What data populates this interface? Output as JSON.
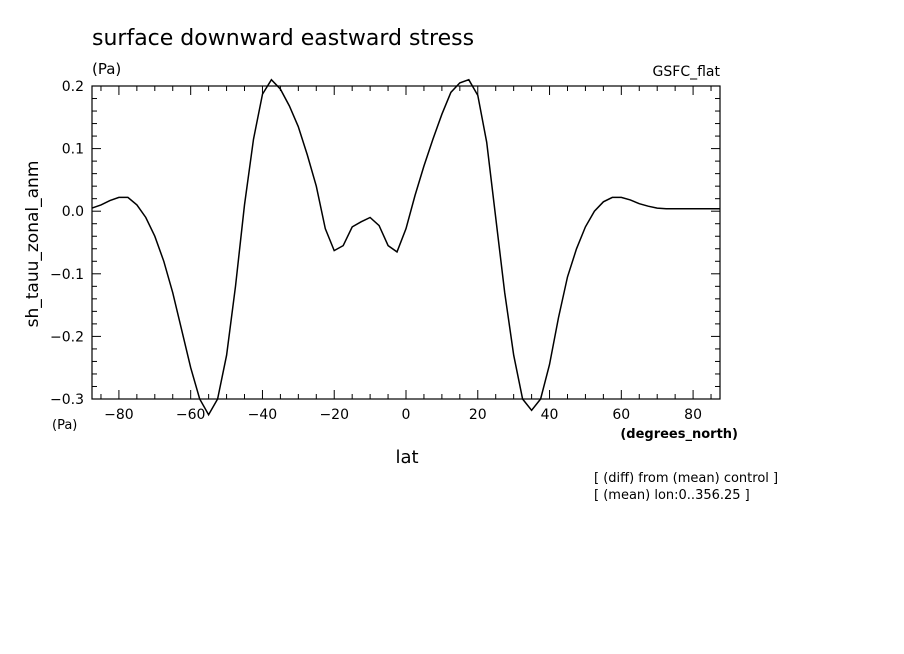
{
  "chart_data": {
    "type": "line",
    "title": "surface downward eastward stress",
    "units_top": "(Pa)",
    "units_left": "(Pa)",
    "source_label": "GSFC_flat",
    "xlabel": "lat",
    "xunits": "(degrees_north)",
    "ylabel": "sh_tauu_zonal_anm",
    "xlim": [
      -87.5,
      87.5
    ],
    "ylim": [
      -0.3,
      0.2
    ],
    "xticks": [
      "−80",
      "−60",
      "−40",
      "−20",
      "0",
      "20",
      "40",
      "60",
      "80"
    ],
    "xtick_values": [
      -80,
      -60,
      -40,
      -20,
      0,
      20,
      40,
      60,
      80
    ],
    "yticks": [
      "0.2",
      "0.1",
      "0.0",
      "−0.1",
      "−0.2",
      "−0.3"
    ],
    "ytick_values": [
      0.2,
      0.1,
      0.0,
      -0.1,
      -0.2,
      -0.3
    ],
    "grid": false,
    "series": [
      {
        "x": [
          -87.5,
          -85,
          -82.5,
          -80,
          -77.5,
          -75,
          -72.5,
          -70,
          -67.5,
          -65,
          -62.5,
          -60,
          -57.5,
          -55,
          -52.5,
          -50,
          -47.5,
          -45,
          -42.5,
          -40,
          -37.5,
          -35,
          -32.5,
          -30,
          -27.5,
          -25,
          -22.5,
          -20,
          -17.5,
          -15,
          -12.5,
          -10,
          -7.5,
          -5,
          -2.5,
          0,
          2.5,
          5,
          7.5,
          10,
          12.5,
          15,
          17.5,
          20,
          22.5,
          25,
          27.5,
          30,
          32.5,
          35,
          37.5,
          40,
          42.5,
          45,
          47.5,
          50,
          52.5,
          55,
          57.5,
          60,
          62.5,
          65,
          67.5,
          70,
          72.5,
          75,
          77.5,
          80,
          82.5,
          85,
          87.5
        ],
        "y": [
          0.005,
          0.01,
          0.017,
          0.022,
          0.022,
          0.01,
          -0.01,
          -0.04,
          -0.08,
          -0.13,
          -0.19,
          -0.25,
          -0.3,
          -0.325,
          -0.3,
          -0.23,
          -0.12,
          0.01,
          0.115,
          0.187,
          0.21,
          0.195,
          0.168,
          0.135,
          0.09,
          0.04,
          -0.028,
          -0.063,
          -0.055,
          -0.025,
          -0.017,
          -0.01,
          -0.023,
          -0.055,
          -0.065,
          -0.028,
          0.025,
          0.072,
          0.115,
          0.155,
          0.19,
          0.205,
          0.21,
          0.185,
          0.11,
          -0.01,
          -0.13,
          -0.23,
          -0.3,
          -0.318,
          -0.3,
          -0.245,
          -0.17,
          -0.105,
          -0.06,
          -0.025,
          0.0,
          0.015,
          0.022,
          0.022,
          0.018,
          0.012,
          0.008,
          0.005,
          0.004,
          0.004,
          0.004,
          0.004,
          0.004,
          0.004,
          0.004
        ]
      }
    ]
  },
  "notes": {
    "line1": "[ (diff) from (mean) control ]",
    "line2": "[ (mean) lon:0..356.25 ]"
  }
}
